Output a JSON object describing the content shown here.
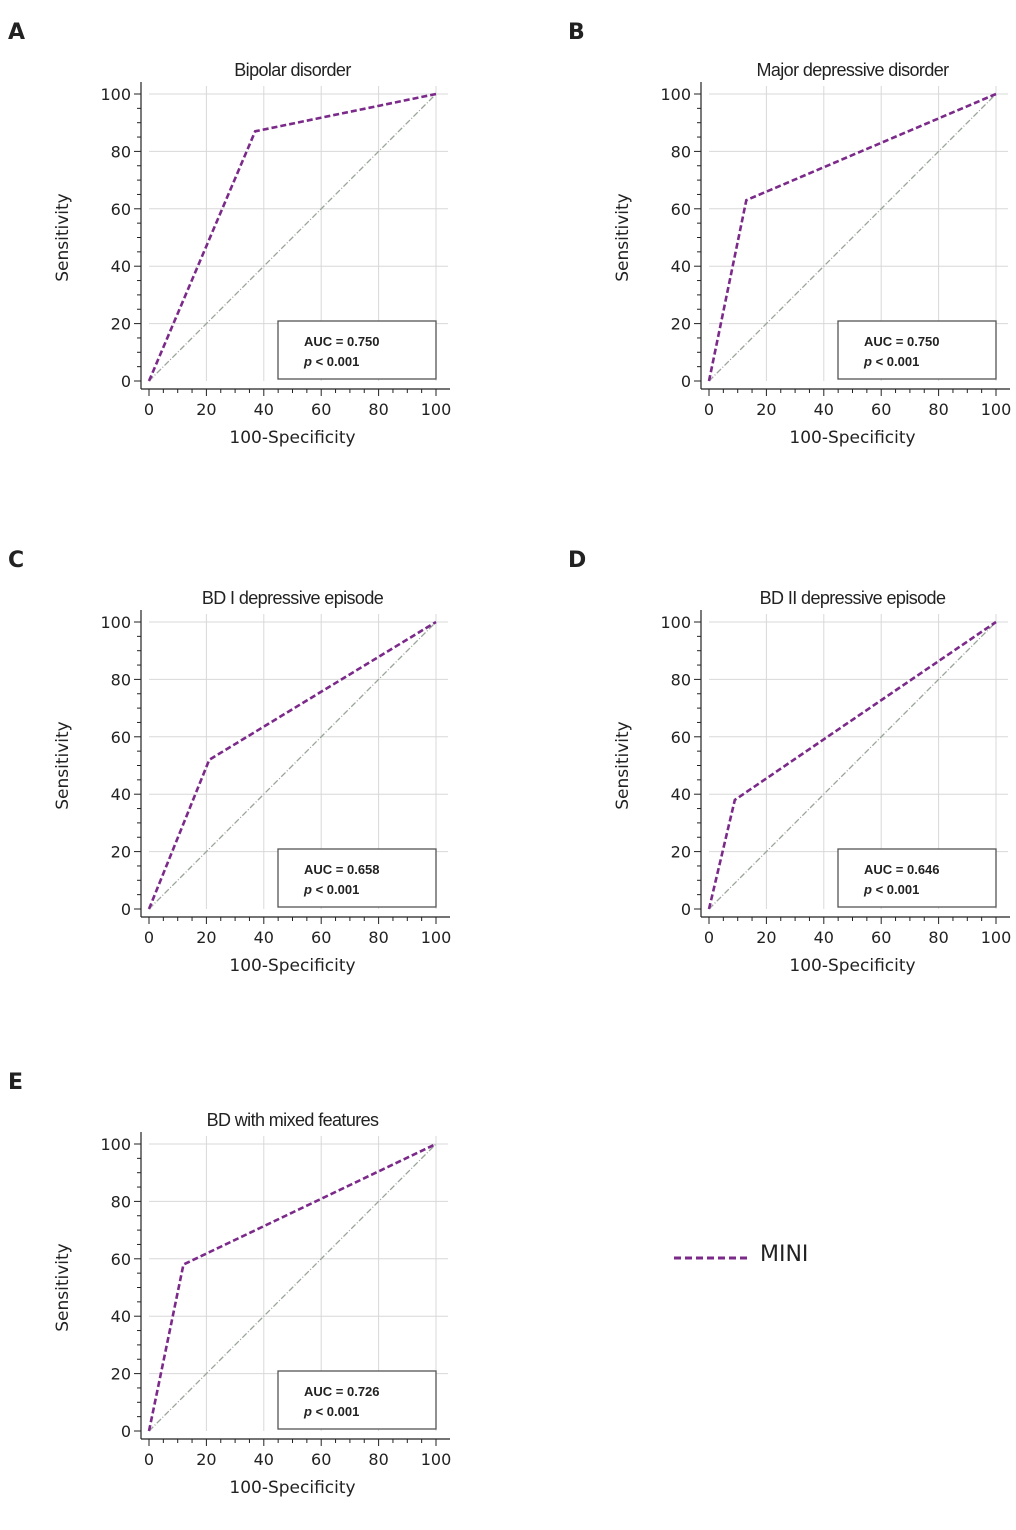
{
  "colors": {
    "roc_line": "#7b2a8a",
    "reference_line": "#9aa59a",
    "grid": "#d8d8d8",
    "axis": "#222222"
  },
  "legend": {
    "label": "MINI"
  },
  "chart_data": [
    {
      "panel": "A",
      "type": "line",
      "title": "Bipolar disorder",
      "xlabel": "100-Specificity",
      "ylabel": "Sensitivity",
      "xlim": [
        0,
        100
      ],
      "ylim": [
        0,
        100
      ],
      "xticks": [
        "0",
        "20",
        "40",
        "60",
        "80",
        "100"
      ],
      "yticks": [
        "0",
        "20",
        "40",
        "60",
        "80",
        "100"
      ],
      "series": [
        {
          "name": "MINI",
          "x": [
            0,
            37,
            100
          ],
          "y": [
            0,
            87,
            100
          ]
        }
      ],
      "auc_text": "AUC = 0.750",
      "p_label": "p",
      "p_text": " < 0.001"
    },
    {
      "panel": "B",
      "type": "line",
      "title": "Major depressive disorder",
      "xlabel": "100-Specificity",
      "ylabel": "Sensitivity",
      "xlim": [
        0,
        100
      ],
      "ylim": [
        0,
        100
      ],
      "xticks": [
        "0",
        "20",
        "40",
        "60",
        "80",
        "100"
      ],
      "yticks": [
        "0",
        "20",
        "40",
        "60",
        "80",
        "100"
      ],
      "series": [
        {
          "name": "MINI",
          "x": [
            0,
            13,
            100
          ],
          "y": [
            0,
            63,
            100
          ]
        }
      ],
      "auc_text": "AUC = 0.750",
      "p_label": "p",
      "p_text": " < 0.001"
    },
    {
      "panel": "C",
      "type": "line",
      "title": "BD I depressive episode",
      "xlabel": "100-Specificity",
      "ylabel": "Sensitivity",
      "xlim": [
        0,
        100
      ],
      "ylim": [
        0,
        100
      ],
      "xticks": [
        "0",
        "20",
        "40",
        "60",
        "80",
        "100"
      ],
      "yticks": [
        "0",
        "20",
        "40",
        "60",
        "80",
        "100"
      ],
      "series": [
        {
          "name": "MINI",
          "x": [
            0,
            21,
            100
          ],
          "y": [
            0,
            52,
            100
          ]
        }
      ],
      "auc_text": "AUC = 0.658",
      "p_label": "p",
      "p_text": " < 0.001"
    },
    {
      "panel": "D",
      "type": "line",
      "title": "BD II depressive episode",
      "xlabel": "100-Specificity",
      "ylabel": "Sensitivity",
      "xlim": [
        0,
        100
      ],
      "ylim": [
        0,
        100
      ],
      "xticks": [
        "0",
        "20",
        "40",
        "60",
        "80",
        "100"
      ],
      "yticks": [
        "0",
        "20",
        "40",
        "60",
        "80",
        "100"
      ],
      "series": [
        {
          "name": "MINI",
          "x": [
            0,
            9,
            100
          ],
          "y": [
            0,
            38,
            100
          ]
        }
      ],
      "auc_text": "AUC = 0.646",
      "p_label": "p",
      "p_text": " < 0.001"
    },
    {
      "panel": "E",
      "type": "line",
      "title": "BD with mixed features",
      "xlabel": "100-Specificity",
      "ylabel": "Sensitivity",
      "xlim": [
        0,
        100
      ],
      "ylim": [
        0,
        100
      ],
      "xticks": [
        "0",
        "20",
        "40",
        "60",
        "80",
        "100"
      ],
      "yticks": [
        "0",
        "20",
        "40",
        "60",
        "80",
        "100"
      ],
      "series": [
        {
          "name": "MINI",
          "x": [
            0,
            12,
            100
          ],
          "y": [
            0,
            58,
            100
          ]
        }
      ],
      "auc_text": "AUC = 0.726",
      "p_label": "p",
      "p_text": " < 0.001"
    }
  ]
}
